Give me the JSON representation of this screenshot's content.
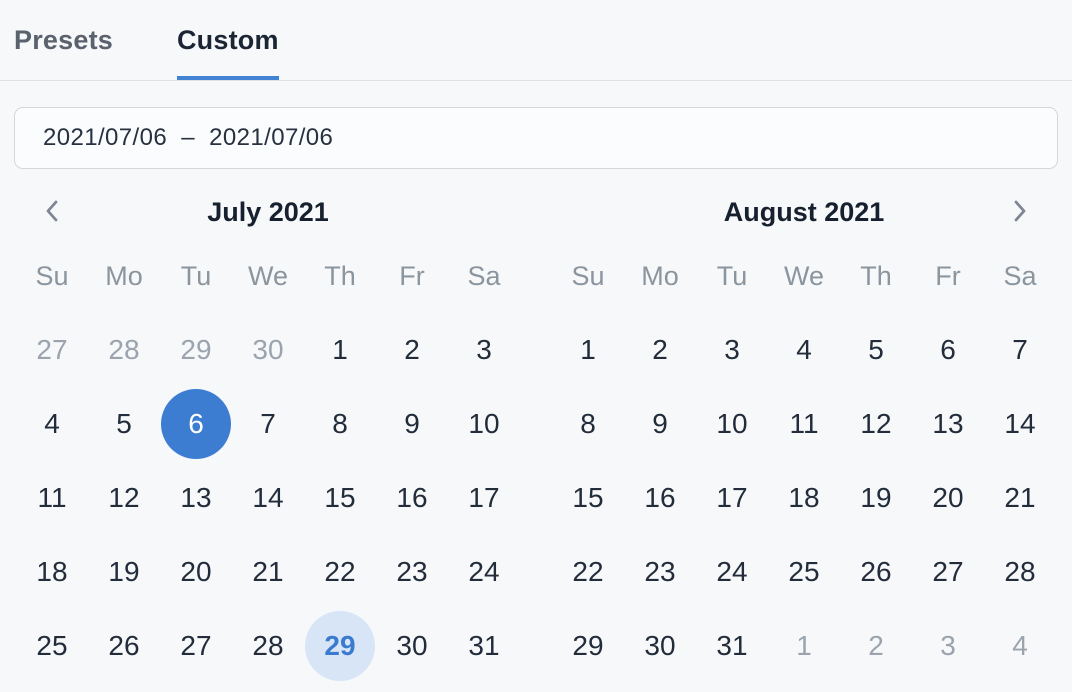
{
  "tabs": [
    {
      "label": "Presets",
      "active": false
    },
    {
      "label": "Custom",
      "active": true
    }
  ],
  "date_range_input": {
    "value": "2021/07/06  –  2021/07/06"
  },
  "nav": {
    "prev_icon": "chevron-left",
    "next_icon": "chevron-right"
  },
  "calendar": {
    "weekdays": [
      "Su",
      "Mo",
      "Tu",
      "We",
      "Th",
      "Fr",
      "Sa"
    ],
    "months": [
      {
        "title": "July 2021",
        "weeks": [
          [
            {
              "n": 27,
              "state": "adjacent"
            },
            {
              "n": 28,
              "state": "adjacent"
            },
            {
              "n": 29,
              "state": "adjacent"
            },
            {
              "n": 30,
              "state": "adjacent"
            },
            {
              "n": 1
            },
            {
              "n": 2
            },
            {
              "n": 3
            }
          ],
          [
            {
              "n": 4
            },
            {
              "n": 5
            },
            {
              "n": 6,
              "state": "selected"
            },
            {
              "n": 7
            },
            {
              "n": 8
            },
            {
              "n": 9
            },
            {
              "n": 10
            }
          ],
          [
            {
              "n": 11
            },
            {
              "n": 12
            },
            {
              "n": 13
            },
            {
              "n": 14
            },
            {
              "n": 15
            },
            {
              "n": 16
            },
            {
              "n": 17
            }
          ],
          [
            {
              "n": 18
            },
            {
              "n": 19
            },
            {
              "n": 20
            },
            {
              "n": 21
            },
            {
              "n": 22
            },
            {
              "n": 23
            },
            {
              "n": 24
            }
          ],
          [
            {
              "n": 25
            },
            {
              "n": 26
            },
            {
              "n": 27
            },
            {
              "n": 28
            },
            {
              "n": 29,
              "state": "today"
            },
            {
              "n": 30
            },
            {
              "n": 31
            }
          ]
        ]
      },
      {
        "title": "August 2021",
        "weeks": [
          [
            {
              "n": 1
            },
            {
              "n": 2
            },
            {
              "n": 3
            },
            {
              "n": 4
            },
            {
              "n": 5
            },
            {
              "n": 6
            },
            {
              "n": 7
            }
          ],
          [
            {
              "n": 8
            },
            {
              "n": 9
            },
            {
              "n": 10
            },
            {
              "n": 11
            },
            {
              "n": 12
            },
            {
              "n": 13
            },
            {
              "n": 14
            }
          ],
          [
            {
              "n": 15
            },
            {
              "n": 16
            },
            {
              "n": 17
            },
            {
              "n": 18
            },
            {
              "n": 19
            },
            {
              "n": 20
            },
            {
              "n": 21
            }
          ],
          [
            {
              "n": 22
            },
            {
              "n": 23
            },
            {
              "n": 24
            },
            {
              "n": 25
            },
            {
              "n": 26
            },
            {
              "n": 27
            },
            {
              "n": 28
            }
          ],
          [
            {
              "n": 29
            },
            {
              "n": 30
            },
            {
              "n": 31
            },
            {
              "n": 1,
              "state": "adjacent"
            },
            {
              "n": 2,
              "state": "adjacent"
            },
            {
              "n": 3,
              "state": "adjacent"
            },
            {
              "n": 4,
              "state": "adjacent"
            }
          ]
        ]
      }
    ]
  },
  "colors": {
    "accent_blue": "#3c7dd2",
    "selected_day_bg": "#3c7dd2",
    "selected_day_text": "#ffffff",
    "today_bg": "#d7e5f6",
    "today_text": "#3a7bd0",
    "tab_underline": "#4383d4",
    "chevron_gray": "#7d8692",
    "adjacent_day_gray": "#9aa3ae"
  }
}
